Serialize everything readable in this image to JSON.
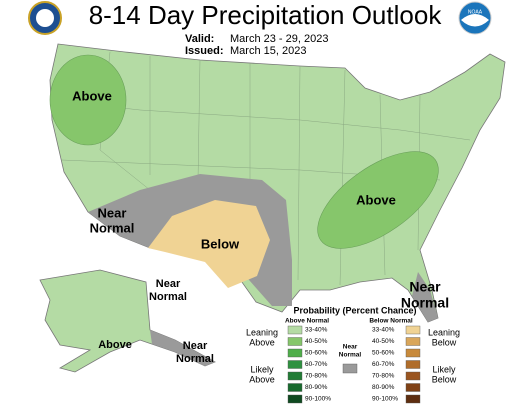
{
  "header": {
    "title": "8-14 Day Precipitation Outlook",
    "valid_label": "Valid:",
    "valid": "March 23 - 29, 2023",
    "issued_label": "Issued:",
    "issued": "March 15, 2023",
    "logo_text": "NOAA"
  },
  "map_labels": [
    {
      "lines": [
        "Above"
      ]
    },
    {
      "lines": [
        "Above"
      ]
    },
    {
      "lines": [
        "Near",
        "Normal"
      ]
    },
    {
      "lines": [
        "Below"
      ]
    },
    {
      "lines": [
        "Near",
        "Normal"
      ]
    },
    {
      "lines": [
        "Above"
      ]
    },
    {
      "lines": [
        "Near",
        "Normal"
      ]
    },
    {
      "lines": [
        "Near",
        "Normal"
      ]
    }
  ],
  "legend": {
    "title": "Probability (Percent Chance)",
    "above_header": "Above Normal",
    "near_header": [
      "Near",
      "Normal"
    ],
    "below_header": "Below Normal",
    "leaning_above": [
      "Leaning",
      "Above"
    ],
    "likely_above": [
      "Likely",
      "Above"
    ],
    "leaning_below": [
      "Leaning",
      "Below"
    ],
    "likely_below": [
      "Likely",
      "Below"
    ],
    "near_color": "#9a9a9a",
    "above_bins": [
      {
        "label": "33-40%",
        "color": "#b4dba4"
      },
      {
        "label": "40-50%",
        "color": "#86c66b"
      },
      {
        "label": "50-60%",
        "color": "#4fae4a"
      },
      {
        "label": "60-70%",
        "color": "#2f9140"
      },
      {
        "label": "70-80%",
        "color": "#227c36"
      },
      {
        "label": "80-90%",
        "color": "#186a2e"
      },
      {
        "label": "90-100%",
        "color": "#0f4a20"
      }
    ],
    "below_bins": [
      {
        "label": "33-40%",
        "color": "#f0d394"
      },
      {
        "label": "40-50%",
        "color": "#d9a65a"
      },
      {
        "label": "50-60%",
        "color": "#c88a3c"
      },
      {
        "label": "60-70%",
        "color": "#b06d2a"
      },
      {
        "label": "70-80%",
        "color": "#9a5520"
      },
      {
        "label": "80-90%",
        "color": "#7f4116"
      },
      {
        "label": "90-100%",
        "color": "#5e2e10"
      }
    ]
  }
}
